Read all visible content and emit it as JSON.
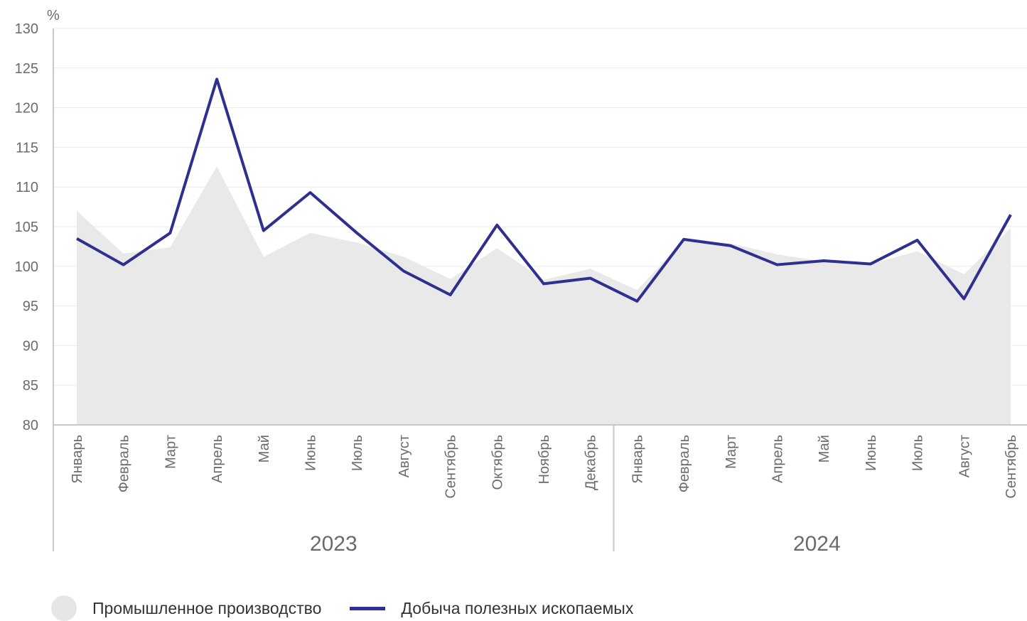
{
  "chart_data": {
    "type": "line",
    "unit": "%",
    "ylim": [
      80,
      130
    ],
    "yticks": [
      80,
      85,
      90,
      95,
      100,
      105,
      110,
      115,
      120,
      125,
      130
    ],
    "grid": true,
    "categories": [
      "Январь",
      "Февраль",
      "Март",
      "Апрель",
      "Май",
      "Июнь",
      "Июль",
      "Август",
      "Сентябрь",
      "Октябрь",
      "Ноябрь",
      "Декабрь",
      "Январь",
      "Февраль",
      "Март",
      "Апрель",
      "Май",
      "Июнь",
      "Июль",
      "Август",
      "Сентябрь"
    ],
    "year_groups": [
      {
        "label": "2023",
        "count": 12
      },
      {
        "label": "2024",
        "count": 9
      }
    ],
    "series": [
      {
        "name": "Промышленное производство",
        "kind": "area",
        "color": "#e9e9e9",
        "values": [
          107.0,
          101.6,
          102.4,
          112.6,
          101.2,
          104.2,
          103.0,
          101.2,
          98.4,
          102.3,
          98.3,
          99.7,
          97.0,
          103.3,
          102.9,
          101.5,
          100.6,
          100.3,
          101.9,
          99.0,
          104.8
        ]
      },
      {
        "name": "Добыча полезных ископаемых",
        "kind": "line",
        "color": "#2f2f8f",
        "values": [
          103.5,
          100.2,
          104.2,
          123.6,
          104.5,
          109.3,
          104.2,
          99.4,
          96.4,
          105.2,
          97.8,
          98.5,
          95.6,
          103.4,
          102.6,
          100.2,
          100.7,
          100.3,
          103.3,
          95.9,
          106.5
        ]
      }
    ],
    "legend_position": "bottom-left"
  }
}
